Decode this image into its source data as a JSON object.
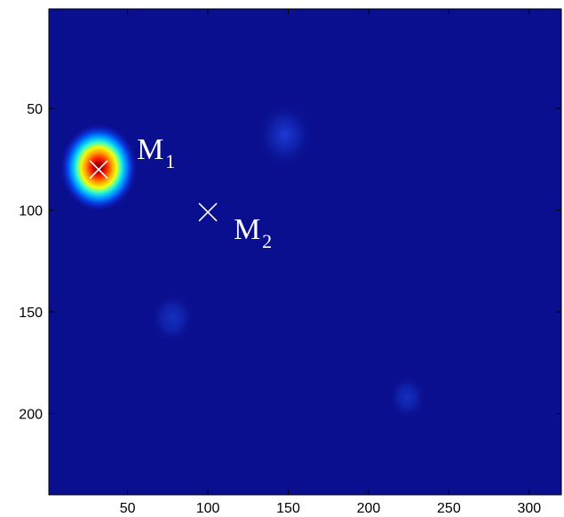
{
  "chart_data": {
    "type": "heatmap",
    "title": "",
    "xlabel": "",
    "ylabel": "",
    "xlim": [
      1,
      320
    ],
    "ylim": [
      1,
      240
    ],
    "y_direction": "reversed",
    "colormap": "jet",
    "background_color": "#0a0f8f",
    "xticks": [
      50,
      100,
      150,
      200,
      250,
      300
    ],
    "yticks": [
      50,
      100,
      150,
      200
    ],
    "xtick_labels": [
      "50",
      "100",
      "150",
      "200",
      "250",
      "300"
    ],
    "ytick_labels": [
      "50",
      "100",
      "150",
      "200"
    ],
    "peaks": [
      {
        "x": 32,
        "y": 79,
        "intensity": 1.0
      },
      {
        "x": 148,
        "y": 63,
        "intensity": 0.2
      },
      {
        "x": 78,
        "y": 153,
        "intensity": 0.12
      },
      {
        "x": 224,
        "y": 192,
        "intensity": 0.08
      }
    ],
    "markers": [
      {
        "x": 32,
        "y": 80,
        "symbol": "×",
        "label": "M",
        "subscript": "1"
      },
      {
        "x": 100,
        "y": 101,
        "symbol": "×",
        "label": "M",
        "subscript": "2"
      }
    ],
    "grid": false
  }
}
